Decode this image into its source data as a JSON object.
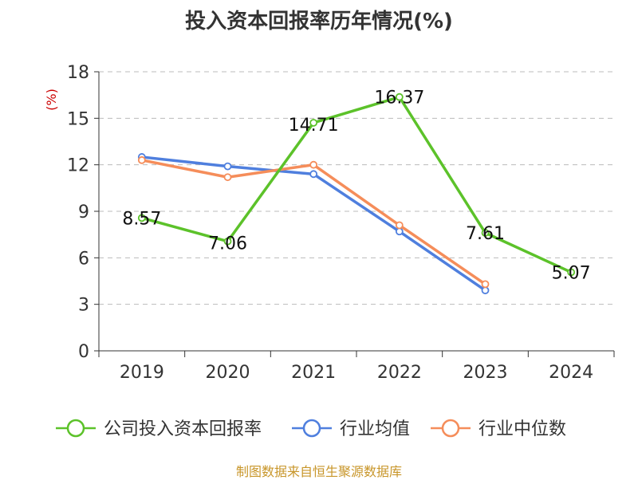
{
  "title": "投入资本回报率历年情况(%)",
  "source": "制图数据来自恒生聚源数据库",
  "chart_data": {
    "type": "line",
    "title": "投入资本回报率历年情况(%)",
    "xlabel": "",
    "ylabel": "(%)",
    "categories": [
      "2019",
      "2020",
      "2021",
      "2022",
      "2023",
      "2024"
    ],
    "ylim": [
      0,
      18
    ],
    "yticks": [
      0,
      3,
      6,
      9,
      12,
      15,
      18
    ],
    "grid": true,
    "legend_position": "bottom",
    "series": [
      {
        "name": "公司投入资本回报率",
        "color": "#5cc22a",
        "values": [
          8.57,
          7.06,
          14.71,
          16.37,
          7.61,
          5.07
        ],
        "labels": [
          "8.57",
          "7.06",
          "14.71",
          "16.37",
          "7.61",
          "5.07"
        ]
      },
      {
        "name": "行业均值",
        "color": "#4f7fde",
        "values": [
          12.5,
          11.9,
          11.4,
          7.7,
          3.9,
          null
        ]
      },
      {
        "name": "行业中位数",
        "color": "#f58d5a",
        "values": [
          12.3,
          11.2,
          12.0,
          8.1,
          4.3,
          null
        ]
      }
    ]
  }
}
